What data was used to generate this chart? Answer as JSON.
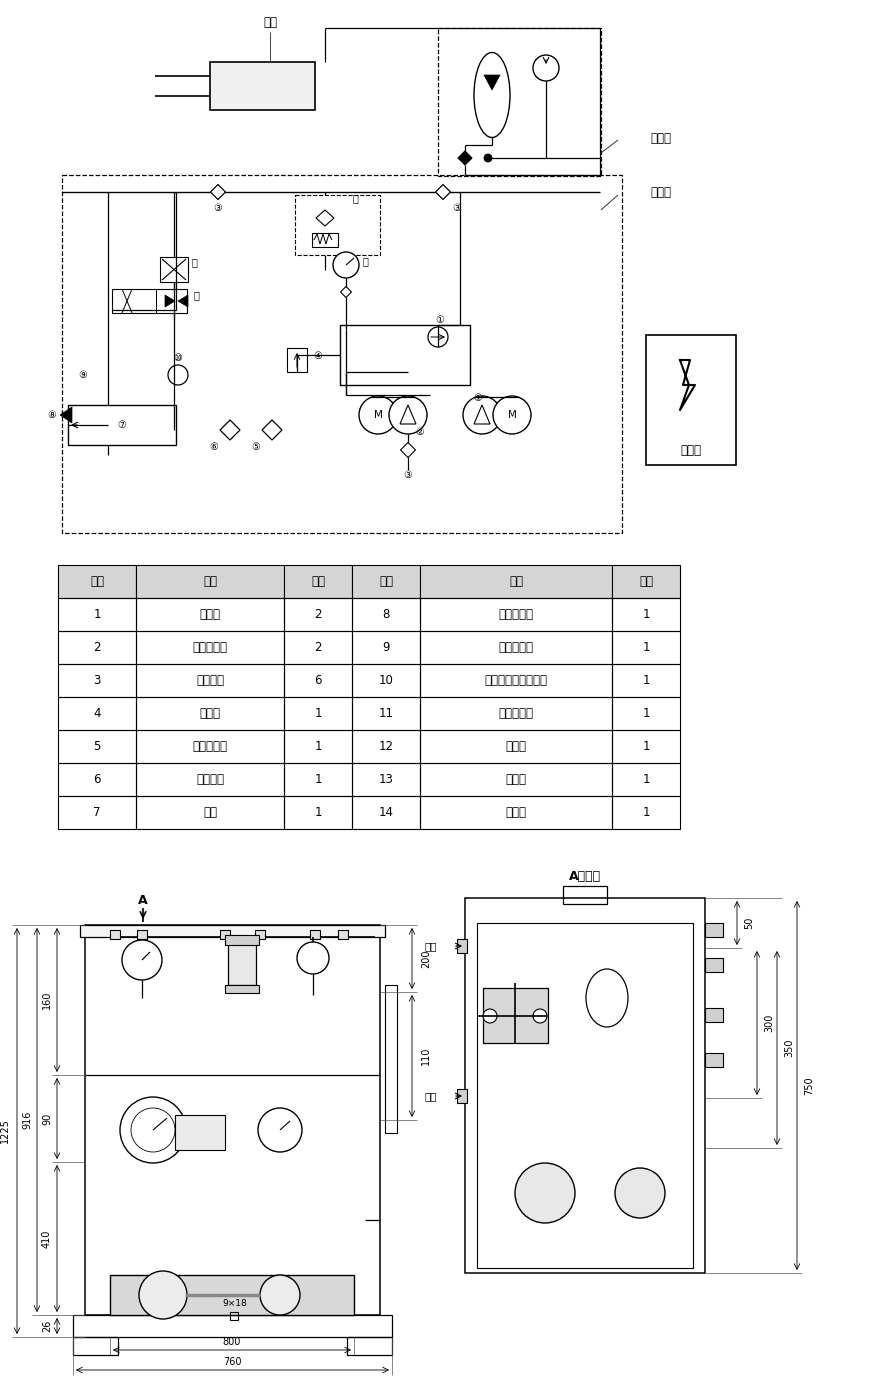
{
  "bg_color": "#ffffff",
  "table_header_color": "#d0d0d0",
  "table_rows": [
    [
      "1",
      "单向阀",
      "2",
      "8",
      "液位液温计",
      "1"
    ],
    [
      "2",
      "变量柱塞泵",
      "2",
      "9",
      "空气滤清器",
      "1"
    ],
    [
      "3",
      "高压球阀",
      "6",
      "10",
      "电接点双金属温度计",
      "1"
    ],
    [
      "4",
      "溢流阀",
      "1",
      "11",
      "电磁换向阀",
      "1"
    ],
    [
      "5",
      "吸油过滤器",
      "1",
      "12",
      "节流阀",
      "1"
    ],
    [
      "6",
      "电加热器",
      "1",
      "13",
      "过滤器",
      "1"
    ],
    [
      "7",
      "油筱",
      "1",
      "14",
      "压力表",
      "1"
    ]
  ],
  "table_headers": [
    "序号",
    "名称",
    "数量",
    "序号",
    "名称",
    "数量"
  ],
  "label_yougang": "油缸",
  "label_xunengqi": "蓄能器",
  "label_yeya_zhan": "液压站",
  "label_diankongxiang": "电控筱",
  "label_a_view": "A向视图",
  "label_youkou": "油口",
  "label_a": "A"
}
